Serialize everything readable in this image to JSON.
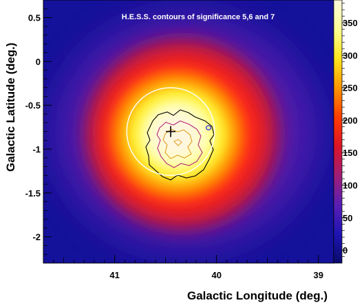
{
  "chart_data": {
    "type": "heatmap",
    "title": "H.E.S.S. contours of significance 5,6 and 7",
    "xlabel": "Galactic Longitude (deg.)",
    "ylabel": "Galactic Latitude (deg.)",
    "xlim": [
      41.7,
      38.85
    ],
    "ylim": [
      -2.3,
      0.7
    ],
    "x_reversed": true,
    "x_ticks": [
      {
        "value": 41,
        "label": "41"
      },
      {
        "value": 40,
        "label": "40"
      },
      {
        "value": 39,
        "label": "39"
      }
    ],
    "y_ticks": [
      {
        "value": 0.5,
        "label": "0.5"
      },
      {
        "value": 0,
        "label": "0"
      },
      {
        "value": -0.5,
        "label": "-0.5"
      },
      {
        "value": -1,
        "label": "-1"
      },
      {
        "value": -1.5,
        "label": "-1.5"
      },
      {
        "value": -2,
        "label": "-2"
      }
    ],
    "colorbar": {
      "min": -20,
      "max": 385,
      "ticks": [
        {
          "value": 350,
          "label": "350"
        },
        {
          "value": 300,
          "label": "300"
        },
        {
          "value": 250,
          "label": "250"
        },
        {
          "value": 200,
          "label": "200"
        },
        {
          "value": 150,
          "label": "150"
        },
        {
          "value": 100,
          "label": "100"
        },
        {
          "value": 50,
          "label": "50"
        },
        {
          "value": 0,
          "label": "0"
        }
      ],
      "colors": [
        "#0a0a6e",
        "#1e14b4",
        "#5a1eb4",
        "#a01e78",
        "#dc1428",
        "#ff3c00",
        "#ff9600",
        "#ffe61e",
        "#ffff96",
        "#fff8dc"
      ]
    },
    "source_center": [
      40.45,
      -0.8
    ],
    "source_marker": {
      "l": 40.45,
      "b": -0.8
    },
    "circle": {
      "l": 40.45,
      "b": -0.8,
      "radius_deg": 0.5
    },
    "contour_levels": [
      {
        "significance": 5,
        "color": "#000000"
      },
      {
        "significance": 6,
        "color": "#b4287a"
      },
      {
        "significance": 7,
        "color": "#e0a020"
      }
    ]
  }
}
